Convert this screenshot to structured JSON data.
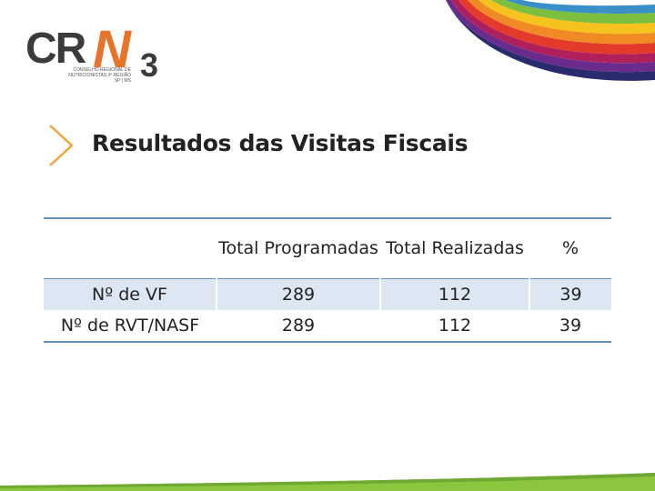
{
  "logo": {
    "letters": "CR",
    "n": "N",
    "digit": "3",
    "subtitle_lines": [
      "Conselho Regional de",
      "Nutricionistas 3ª Região",
      "SP | MS"
    ]
  },
  "title": "Resultados das Visitas Fiscais",
  "table": {
    "headers": [
      "",
      "Total Programadas",
      "Total Realizadas",
      "%"
    ],
    "rows": [
      {
        "label": "Nº de VF",
        "programadas": "289",
        "realizadas": "112",
        "percent": "39"
      },
      {
        "label": "Nº de RVT/NASF",
        "programadas": "289",
        "realizadas": "112",
        "percent": "39"
      }
    ]
  },
  "colors": {
    "accent_orange": "#f2a53a",
    "table_rule": "#6d8ec3",
    "row_shade": "#dde6f3",
    "footer_green": "#8cc63f"
  }
}
